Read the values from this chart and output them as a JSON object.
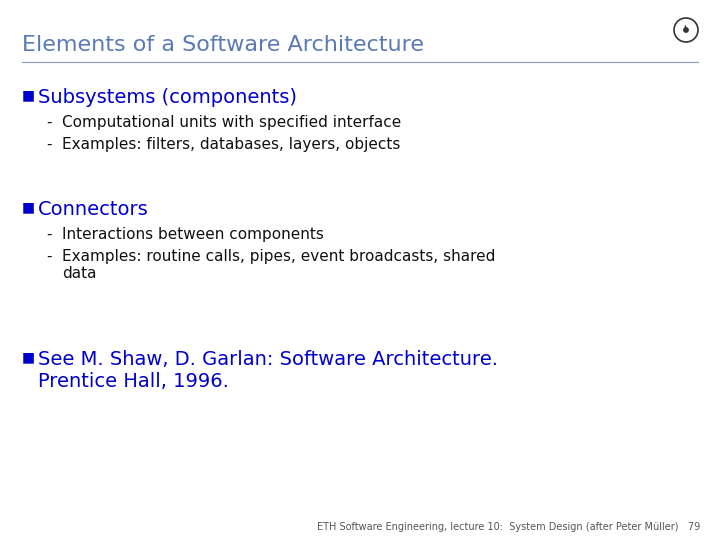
{
  "title": "Elements of a Software Architecture",
  "title_color": "#5a7ab5",
  "title_fontsize": 16,
  "bg_color": "#ffffff",
  "section_color": "#0000cc",
  "section_fontsize": 14,
  "body_color": "#111111",
  "body_fontsize": 11,
  "bullet_color": "#0000cc",
  "bullet_fontsize": 10,
  "line_color": "#8899bb",
  "sections": [
    {
      "heading": "Subsystems (components)",
      "items": [
        "Computational units with specified interface",
        "Examples: filters, databases, layers, objects"
      ]
    },
    {
      "heading": "Connectors",
      "items": [
        "Interactions between components",
        "Examples: routine calls, pipes, event broadcasts, shared\ndata"
      ]
    }
  ],
  "reference_line1": "See M. Shaw, D. Garlan: Software Architecture.",
  "reference_line2": "Prentice Hall, 1996.",
  "reference_color": "#0000cc",
  "reference_fontsize": 14,
  "footer_text": "ETH Software Engineering, lecture 10:  System Design (after Peter Müller)   79",
  "footer_color": "#555555",
  "footer_fontsize": 7,
  "logo_color": "#333333"
}
